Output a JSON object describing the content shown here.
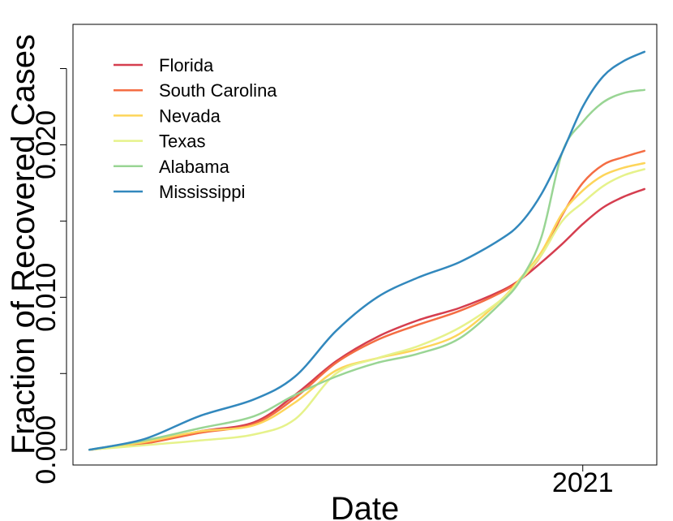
{
  "chart_data": {
    "type": "line",
    "title": "",
    "xlabel": "Date",
    "ylabel": "Fraction of Recovered Cases",
    "x_tick_labels": [
      {
        "x": 360,
        "label": "2021"
      }
    ],
    "y_ticks": [
      0.0,
      0.01,
      0.02
    ],
    "y_tick_labels": [
      "0.000",
      "0.010",
      "0.020"
    ],
    "xlim": [
      -12,
      414
    ],
    "ylim": [
      -0.001,
      0.0279
    ],
    "x_unit": "days since first observation (2020)",
    "grid": false,
    "legend_position": "top-left",
    "x": [
      0,
      40,
      80,
      120,
      150,
      180,
      210,
      240,
      270,
      300,
      315,
      330,
      345,
      360,
      375,
      390,
      405
    ],
    "series": [
      {
        "name": "Florida",
        "color": "#d53e4f",
        "values": [
          0,
          0.0004,
          0.0012,
          0.0018,
          0.0036,
          0.0058,
          0.0074,
          0.0085,
          0.0093,
          0.0104,
          0.0112,
          0.0123,
          0.0135,
          0.0148,
          0.0159,
          0.0166,
          0.0171
        ]
      },
      {
        "name": "South Carolina",
        "color": "#f46d43",
        "values": [
          0,
          0.0004,
          0.0011,
          0.0017,
          0.0034,
          0.0057,
          0.0072,
          0.0082,
          0.0091,
          0.0103,
          0.0112,
          0.0128,
          0.0154,
          0.0175,
          0.0187,
          0.0192,
          0.0196
        ]
      },
      {
        "name": "Nevada",
        "color": "#fdd55a",
        "values": [
          0,
          0.0005,
          0.0012,
          0.0016,
          0.0031,
          0.0052,
          0.006,
          0.0066,
          0.0076,
          0.0098,
          0.0113,
          0.013,
          0.0155,
          0.017,
          0.018,
          0.0185,
          0.0188
        ]
      },
      {
        "name": "Texas",
        "color": "#e6f28b",
        "values": [
          0,
          0.0003,
          0.0006,
          0.001,
          0.002,
          0.005,
          0.006,
          0.0068,
          0.008,
          0.0098,
          0.0112,
          0.0128,
          0.015,
          0.0162,
          0.0173,
          0.018,
          0.0184
        ]
      },
      {
        "name": "Alabama",
        "color": "#99d594",
        "values": [
          0,
          0.0006,
          0.0014,
          0.0022,
          0.0036,
          0.0048,
          0.0057,
          0.0063,
          0.0073,
          0.0096,
          0.0112,
          0.014,
          0.0195,
          0.0215,
          0.0228,
          0.0234,
          0.0236
        ]
      },
      {
        "name": "Mississippi",
        "color": "#3288bd",
        "values": [
          0,
          0.0007,
          0.0022,
          0.0033,
          0.0048,
          0.0078,
          0.01,
          0.0113,
          0.0123,
          0.0138,
          0.0149,
          0.0168,
          0.0195,
          0.0225,
          0.0245,
          0.0255,
          0.0261
        ]
      }
    ]
  }
}
